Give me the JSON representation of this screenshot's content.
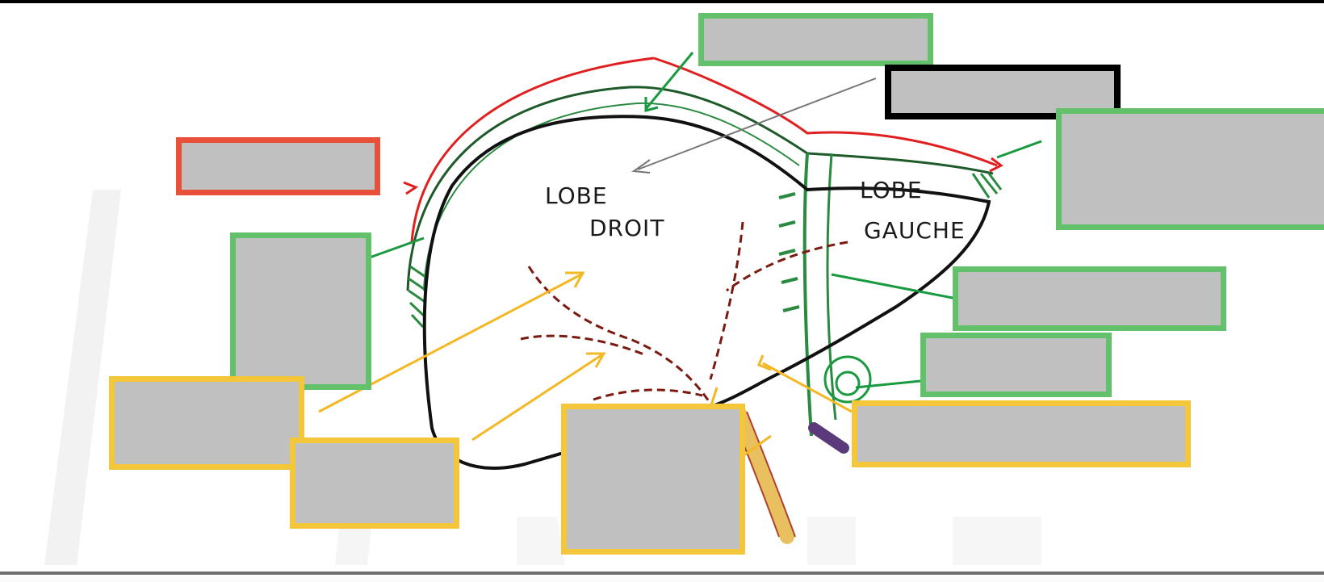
{
  "diagram": {
    "lobe_right_line1": "LOBE",
    "lobe_right_line2": "DROIT",
    "lobe_left_line1": "LOBE",
    "lobe_left_line2": "GAUCHE"
  },
  "colors": {
    "red_border": "#e8503a",
    "green_border": "#63c06b",
    "black_border": "#000000",
    "yellow_border": "#f4c63a",
    "redacted_fill": "#c0c0c0",
    "liver_outline": "#111111",
    "capsule_green": "#1f7a3a",
    "peritoneum_red": "#e02020",
    "bile_brown": "#7a1a10",
    "arrow_yellow": "#f3b823",
    "arrow_green": "#1a9a40",
    "vein_purple": "#5a3a7a",
    "duct_yellow": "#e8c060"
  },
  "label_boxes": [
    {
      "id": "red-1",
      "color": "red",
      "text": ""
    },
    {
      "id": "green-top",
      "color": "green",
      "text": ""
    },
    {
      "id": "black-top",
      "color": "black",
      "text": ""
    },
    {
      "id": "green-right-top",
      "color": "green",
      "text": ""
    },
    {
      "id": "green-left",
      "color": "green",
      "text": ""
    },
    {
      "id": "green-right-mid",
      "color": "green",
      "text": ""
    },
    {
      "id": "green-right-low",
      "color": "green",
      "text": ""
    },
    {
      "id": "yellow-left",
      "color": "yellow",
      "text": ""
    },
    {
      "id": "yellow-left-low",
      "color": "yellow",
      "text": ""
    },
    {
      "id": "yellow-center",
      "color": "yellow",
      "text": ""
    },
    {
      "id": "yellow-right",
      "color": "yellow",
      "text": ""
    }
  ]
}
